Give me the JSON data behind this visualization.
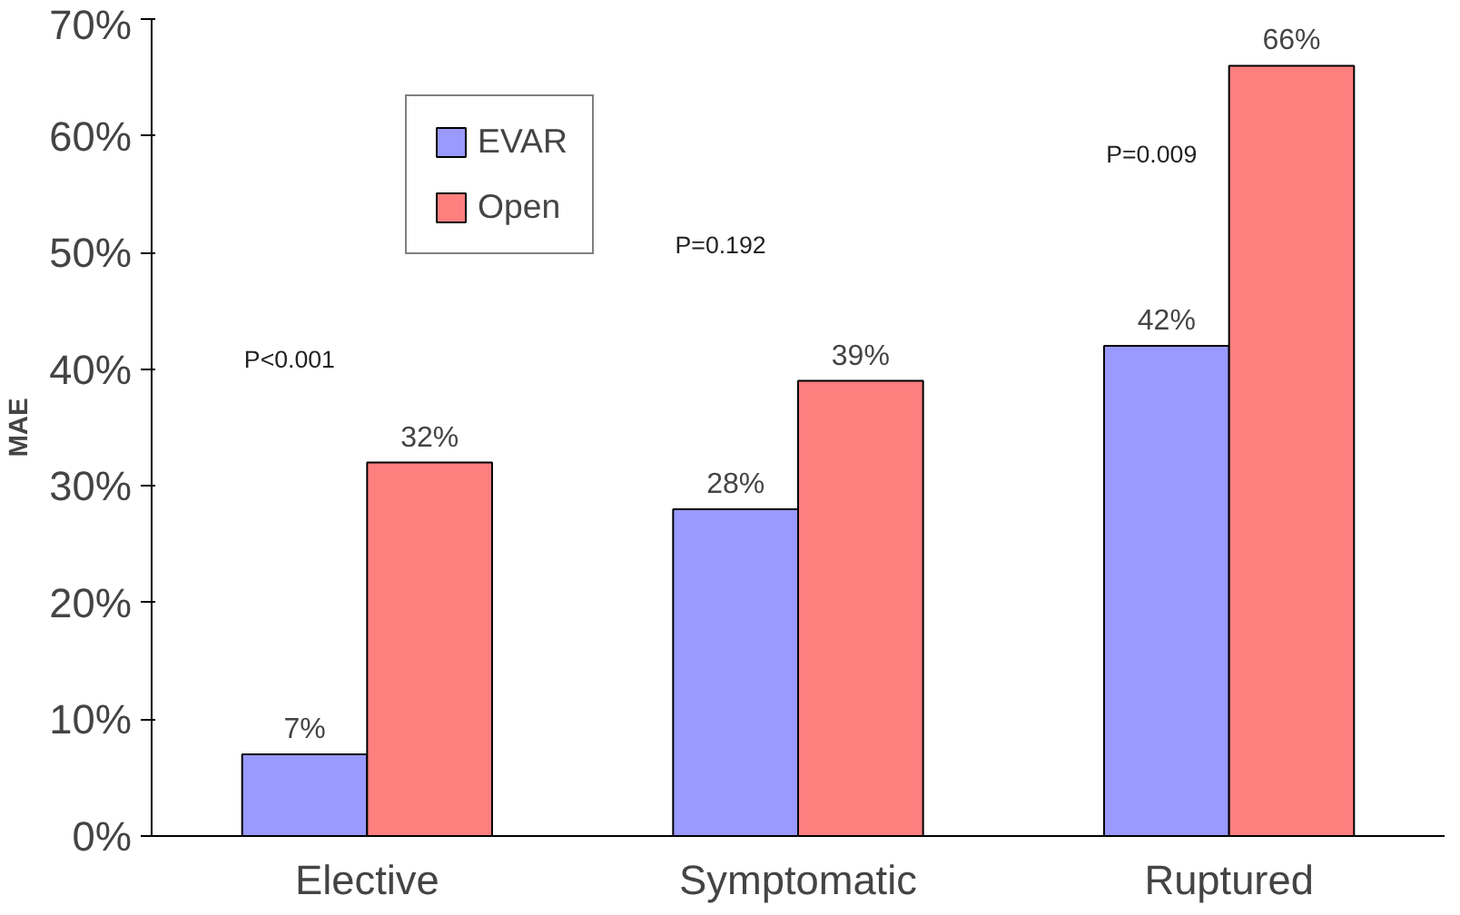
{
  "chart_data": {
    "type": "bar",
    "ylabel": "MAE",
    "categories": [
      "Elective",
      "Symptomatic",
      "Ruptured"
    ],
    "series": [
      {
        "name": "EVAR",
        "color": "#9999ff",
        "values": [
          7,
          28,
          42
        ],
        "value_labels": [
          "7%",
          "28%",
          "42%"
        ]
      },
      {
        "name": "Open",
        "color": "#ff7f7f",
        "values": [
          32,
          39,
          66
        ],
        "value_labels": [
          "32%",
          "39%",
          "66%"
        ]
      }
    ],
    "ylim": [
      0,
      70
    ],
    "yticks": [
      {
        "value": 0,
        "label": "0%"
      },
      {
        "value": 10,
        "label": "10%"
      },
      {
        "value": 20,
        "label": "20%"
      },
      {
        "value": 30,
        "label": "30%"
      },
      {
        "value": 40,
        "label": "40%"
      },
      {
        "value": 50,
        "label": "50%"
      },
      {
        "value": 60,
        "label": "60%"
      },
      {
        "value": 70,
        "label": "70%"
      }
    ],
    "annotations": [
      "P<0.001",
      "P=0.192",
      "P=0.009"
    ],
    "grid": false,
    "legend": "top left"
  }
}
